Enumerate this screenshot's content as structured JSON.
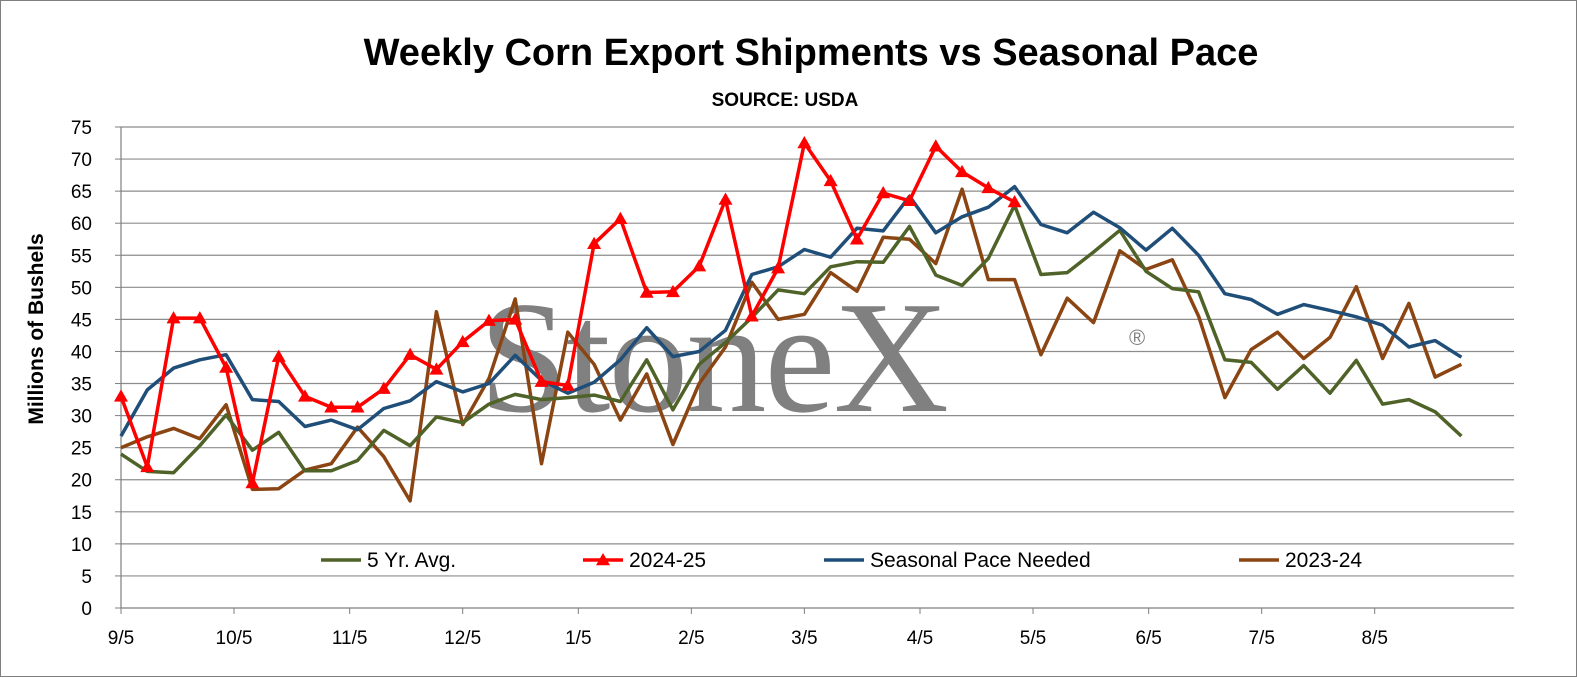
{
  "chart_data": {
    "type": "line",
    "title": "Weekly Corn Export Shipments vs Seasonal Pace",
    "subtitle": "SOURCE: USDA",
    "ylabel": "Millions of Bushels",
    "xlabel": "",
    "ylim": [
      0,
      75
    ],
    "ytick_step": 5,
    "grid": true,
    "legend_position": "bottom-inside",
    "watermark": "StoneX",
    "x_tick_labels": [
      "9/5",
      "10/5",
      "11/5",
      "12/5",
      "1/5",
      "2/5",
      "3/5",
      "4/5",
      "5/5",
      "6/5",
      "7/5",
      "8/5"
    ],
    "x_tick_weeks": [
      0,
      4.3,
      8.7,
      13,
      17.4,
      21.7,
      26,
      30.4,
      34.7,
      39.1,
      43.4,
      47.7
    ],
    "num_weeks": 53,
    "series": [
      {
        "name": "5 Yr. Avg.",
        "color": "#4f6228",
        "marker": "none",
        "values": [
          24,
          21.3,
          21.1,
          25.3,
          30.1,
          24.6,
          27.4,
          21.4,
          21.4,
          23,
          27.7,
          25.3,
          29.8,
          28.9,
          31.8,
          33.3,
          32.5,
          32.8,
          33.2,
          32.2,
          38.7,
          30.9,
          38,
          41.4,
          45.3,
          49.6,
          49,
          53.2,
          54,
          53.9,
          59.5,
          51.9,
          50.3,
          54.5,
          62.8,
          52,
          52.3,
          55.5,
          58.9,
          52.5,
          49.8,
          49.3,
          38.7,
          38.3,
          34.1,
          37.8,
          33.5,
          38.6,
          31.8,
          32.5,
          30.6,
          26.8
        ]
      },
      {
        "name": "2024-25",
        "color": "#ff0000",
        "marker": "triangle",
        "values": [
          33,
          22,
          45.2,
          45.2,
          37.5,
          19.5,
          39.2,
          33,
          31.3,
          31.3,
          34.2,
          39.5,
          37.2,
          41.5,
          44.8,
          45,
          35.3,
          34.7,
          56.8,
          60.7,
          49.2,
          49.3,
          53.3,
          63.7,
          45.5,
          53,
          72.5,
          66.6,
          57.5,
          64.7,
          63.5,
          72,
          68,
          65.5,
          63.3
        ]
      },
      {
        "name": "Seasonal Pace Needed",
        "color": "#1f4e79",
        "marker": "none",
        "values": [
          26.8,
          34,
          37.4,
          38.7,
          39.5,
          32.5,
          32.2,
          28.3,
          29.3,
          27.8,
          31.1,
          32.3,
          35.3,
          33.7,
          35,
          39.4,
          35.5,
          33.5,
          35.2,
          38.7,
          43.7,
          39.2,
          40,
          43.3,
          52,
          53.2,
          55.9,
          54.7,
          59.2,
          58.8,
          64.2,
          58.5,
          61,
          62.5,
          65.7,
          59.8,
          58.5,
          61.7,
          59.3,
          55.8,
          59.2,
          55,
          49,
          48.1,
          45.8,
          47.3,
          46.4,
          45.4,
          44.1,
          40.7,
          41.7,
          39.1
        ]
      },
      {
        "name": "2023-24",
        "color": "#8b4513",
        "marker": "none",
        "values": [
          25,
          26.7,
          28,
          26.4,
          31.7,
          18.5,
          18.6,
          21.5,
          22.5,
          28.2,
          23.6,
          16.7,
          46.2,
          28.6,
          35.8,
          48.2,
          22.5,
          43,
          38,
          29.3,
          36.5,
          25.5,
          35,
          40.7,
          50.8,
          45,
          45.8,
          52.3,
          49.4,
          57.8,
          57.5,
          53.7,
          65.3,
          51.2,
          51.2,
          39.5,
          48.3,
          44.5,
          55.7,
          52.8,
          54.3,
          45.5,
          32.8,
          40.3,
          43,
          38.9,
          42.2,
          50.1,
          38.9,
          47.5,
          36,
          38
        ]
      }
    ]
  }
}
